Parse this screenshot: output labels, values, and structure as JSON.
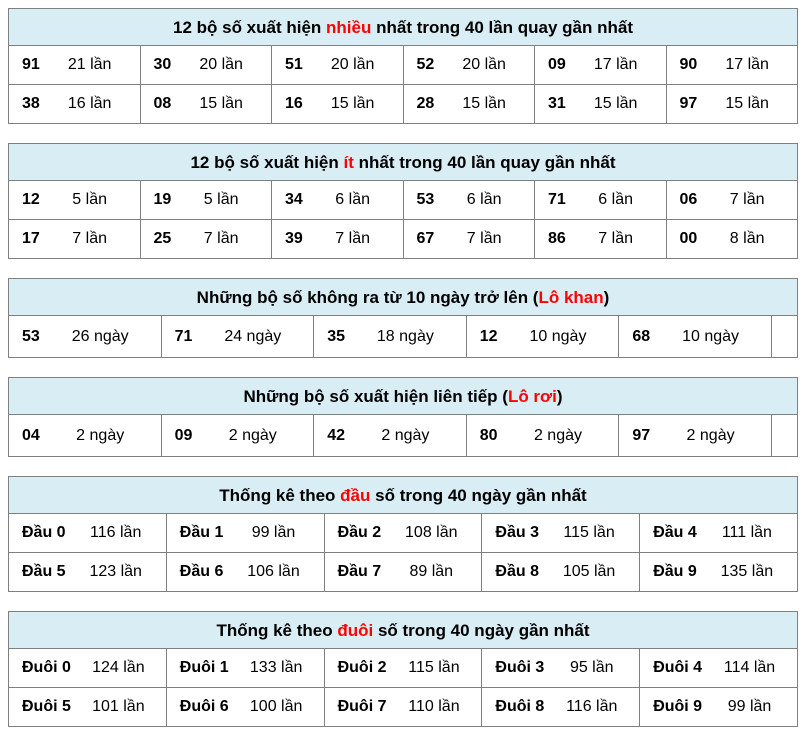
{
  "colors": {
    "background": "#ffffff",
    "header_bg": "#d9edf5",
    "border": "#808080",
    "highlight_red": "#ff0000",
    "text": "#000000"
  },
  "tables": [
    {
      "id": "most-frequent",
      "title": [
        {
          "t": "12 bộ số xuất hiện "
        },
        {
          "t": "nhiều",
          "red": true
        },
        {
          "t": " nhất trong 40 lần quay gần nhất"
        }
      ],
      "trailing_empty": false,
      "rows": [
        [
          [
            "91",
            "21 lần"
          ],
          [
            "30",
            "20 lần"
          ],
          [
            "51",
            "20 lần"
          ],
          [
            "52",
            "20 lần"
          ],
          [
            "09",
            "17 lần"
          ],
          [
            "90",
            "17 lần"
          ]
        ],
        [
          [
            "38",
            "16 lần"
          ],
          [
            "08",
            "15 lần"
          ],
          [
            "16",
            "15 lần"
          ],
          [
            "28",
            "15 lần"
          ],
          [
            "31",
            "15 lần"
          ],
          [
            "97",
            "15 lần"
          ]
        ]
      ]
    },
    {
      "id": "least-frequent",
      "title": [
        {
          "t": "12 bộ số xuất hiện "
        },
        {
          "t": "ít",
          "red": true
        },
        {
          "t": " nhất trong 40 lần quay gần nhất"
        }
      ],
      "trailing_empty": false,
      "rows": [
        [
          [
            "12",
            "5 lần"
          ],
          [
            "19",
            "5 lần"
          ],
          [
            "34",
            "6 lần"
          ],
          [
            "53",
            "6 lần"
          ],
          [
            "71",
            "6 lần"
          ],
          [
            "06",
            "7 lần"
          ]
        ],
        [
          [
            "17",
            "7 lần"
          ],
          [
            "25",
            "7 lần"
          ],
          [
            "39",
            "7 lần"
          ],
          [
            "67",
            "7 lần"
          ],
          [
            "86",
            "7 lần"
          ],
          [
            "00",
            "8 lần"
          ]
        ]
      ]
    },
    {
      "id": "lo-khan",
      "title": [
        {
          "t": "Những bộ số không ra từ 10 ngày trở lên ("
        },
        {
          "t": "Lô khan",
          "red": true
        },
        {
          "t": ")"
        }
      ],
      "trailing_empty": true,
      "rows": [
        [
          [
            "53",
            "26 ngày"
          ],
          [
            "71",
            "24 ngày"
          ],
          [
            "35",
            "18 ngày"
          ],
          [
            "12",
            "10 ngày"
          ],
          [
            "68",
            "10 ngày"
          ]
        ]
      ]
    },
    {
      "id": "lo-roi",
      "title": [
        {
          "t": "Những bộ số xuất hiện liên tiếp ("
        },
        {
          "t": "Lô rơi",
          "red": true
        },
        {
          "t": ")"
        }
      ],
      "trailing_empty": true,
      "rows": [
        [
          [
            "04",
            "2 ngày"
          ],
          [
            "09",
            "2 ngày"
          ],
          [
            "42",
            "2 ngày"
          ],
          [
            "80",
            "2 ngày"
          ],
          [
            "97",
            "2 ngày"
          ]
        ]
      ]
    },
    {
      "id": "dau-stats",
      "title": [
        {
          "t": "Thống kê theo "
        },
        {
          "t": "đầu",
          "red": true
        },
        {
          "t": " số trong 40 ngày gần nhất"
        }
      ],
      "trailing_empty": false,
      "rows": [
        [
          [
            "Đầu 0",
            "116 lần"
          ],
          [
            "Đầu 1",
            "99 lần"
          ],
          [
            "Đầu 2",
            "108 lần"
          ],
          [
            "Đầu 3",
            "115 lần"
          ],
          [
            "Đầu 4",
            "111 lần"
          ]
        ],
        [
          [
            "Đầu 5",
            "123 lần"
          ],
          [
            "Đầu 6",
            "106 lần"
          ],
          [
            "Đầu 7",
            "89 lần"
          ],
          [
            "Đầu 8",
            "105 lần"
          ],
          [
            "Đầu 9",
            "135 lần"
          ]
        ]
      ]
    },
    {
      "id": "duoi-stats",
      "title": [
        {
          "t": "Thống kê theo "
        },
        {
          "t": "đuôi",
          "red": true
        },
        {
          "t": " số trong 40 ngày gần nhất"
        }
      ],
      "trailing_empty": false,
      "rows": [
        [
          [
            "Đuôi 0",
            "124 lần"
          ],
          [
            "Đuôi 1",
            "133 lần"
          ],
          [
            "Đuôi 2",
            "115 lần"
          ],
          [
            "Đuôi 3",
            "95 lần"
          ],
          [
            "Đuôi 4",
            "114 lần"
          ]
        ],
        [
          [
            "Đuôi 5",
            "101 lần"
          ],
          [
            "Đuôi 6",
            "100 lần"
          ],
          [
            "Đuôi 7",
            "110 lần"
          ],
          [
            "Đuôi 8",
            "116 lần"
          ],
          [
            "Đuôi 9",
            "99 lần"
          ]
        ]
      ]
    }
  ]
}
